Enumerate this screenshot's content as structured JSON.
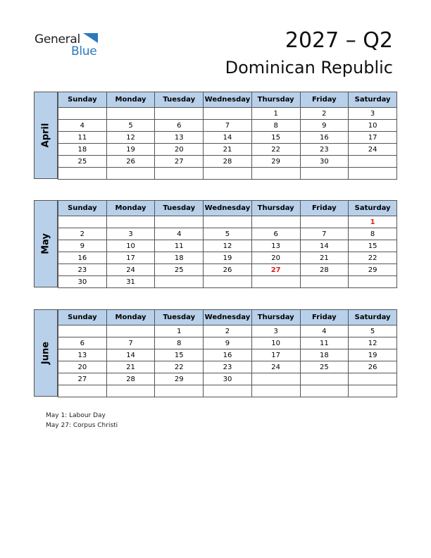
{
  "header": {
    "logo_general": "General",
    "logo_blue": "Blue",
    "title": "2027 – Q2",
    "country": "Dominican Republic"
  },
  "weekdays": [
    "Sunday",
    "Monday",
    "Tuesday",
    "Wednesday",
    "Thursday",
    "Friday",
    "Saturday"
  ],
  "months": [
    {
      "name": "April",
      "weeks": [
        [
          "",
          "",
          "",
          "",
          "1",
          "2",
          "3"
        ],
        [
          "4",
          "5",
          "6",
          "7",
          "8",
          "9",
          "10"
        ],
        [
          "11",
          "12",
          "13",
          "14",
          "15",
          "16",
          "17"
        ],
        [
          "18",
          "19",
          "20",
          "21",
          "22",
          "23",
          "24"
        ],
        [
          "25",
          "26",
          "27",
          "28",
          "29",
          "30",
          ""
        ],
        [
          "",
          "",
          "",
          "",
          "",
          "",
          ""
        ]
      ],
      "holidays": []
    },
    {
      "name": "May",
      "weeks": [
        [
          "",
          "",
          "",
          "",
          "",
          "",
          "1"
        ],
        [
          "2",
          "3",
          "4",
          "5",
          "6",
          "7",
          "8"
        ],
        [
          "9",
          "10",
          "11",
          "12",
          "13",
          "14",
          "15"
        ],
        [
          "16",
          "17",
          "18",
          "19",
          "20",
          "21",
          "22"
        ],
        [
          "23",
          "24",
          "25",
          "26",
          "27",
          "28",
          "29"
        ],
        [
          "30",
          "31",
          "",
          "",
          "",
          "",
          ""
        ]
      ],
      "holidays": [
        "1",
        "27"
      ]
    },
    {
      "name": "June",
      "weeks": [
        [
          "",
          "",
          "1",
          "2",
          "3",
          "4",
          "5"
        ],
        [
          "6",
          "7",
          "8",
          "9",
          "10",
          "11",
          "12"
        ],
        [
          "13",
          "14",
          "15",
          "16",
          "17",
          "18",
          "19"
        ],
        [
          "20",
          "21",
          "22",
          "23",
          "24",
          "25",
          "26"
        ],
        [
          "27",
          "28",
          "29",
          "30",
          "",
          "",
          ""
        ],
        [
          "",
          "",
          "",
          "",
          "",
          "",
          ""
        ]
      ],
      "holidays": []
    }
  ],
  "notes": [
    "May 1: Labour Day",
    "May 27: Corpus Christi"
  ],
  "colors": {
    "header_fill": "#b8d0ea",
    "holiday": "#e0201a",
    "brand_blue": "#2b79be"
  }
}
